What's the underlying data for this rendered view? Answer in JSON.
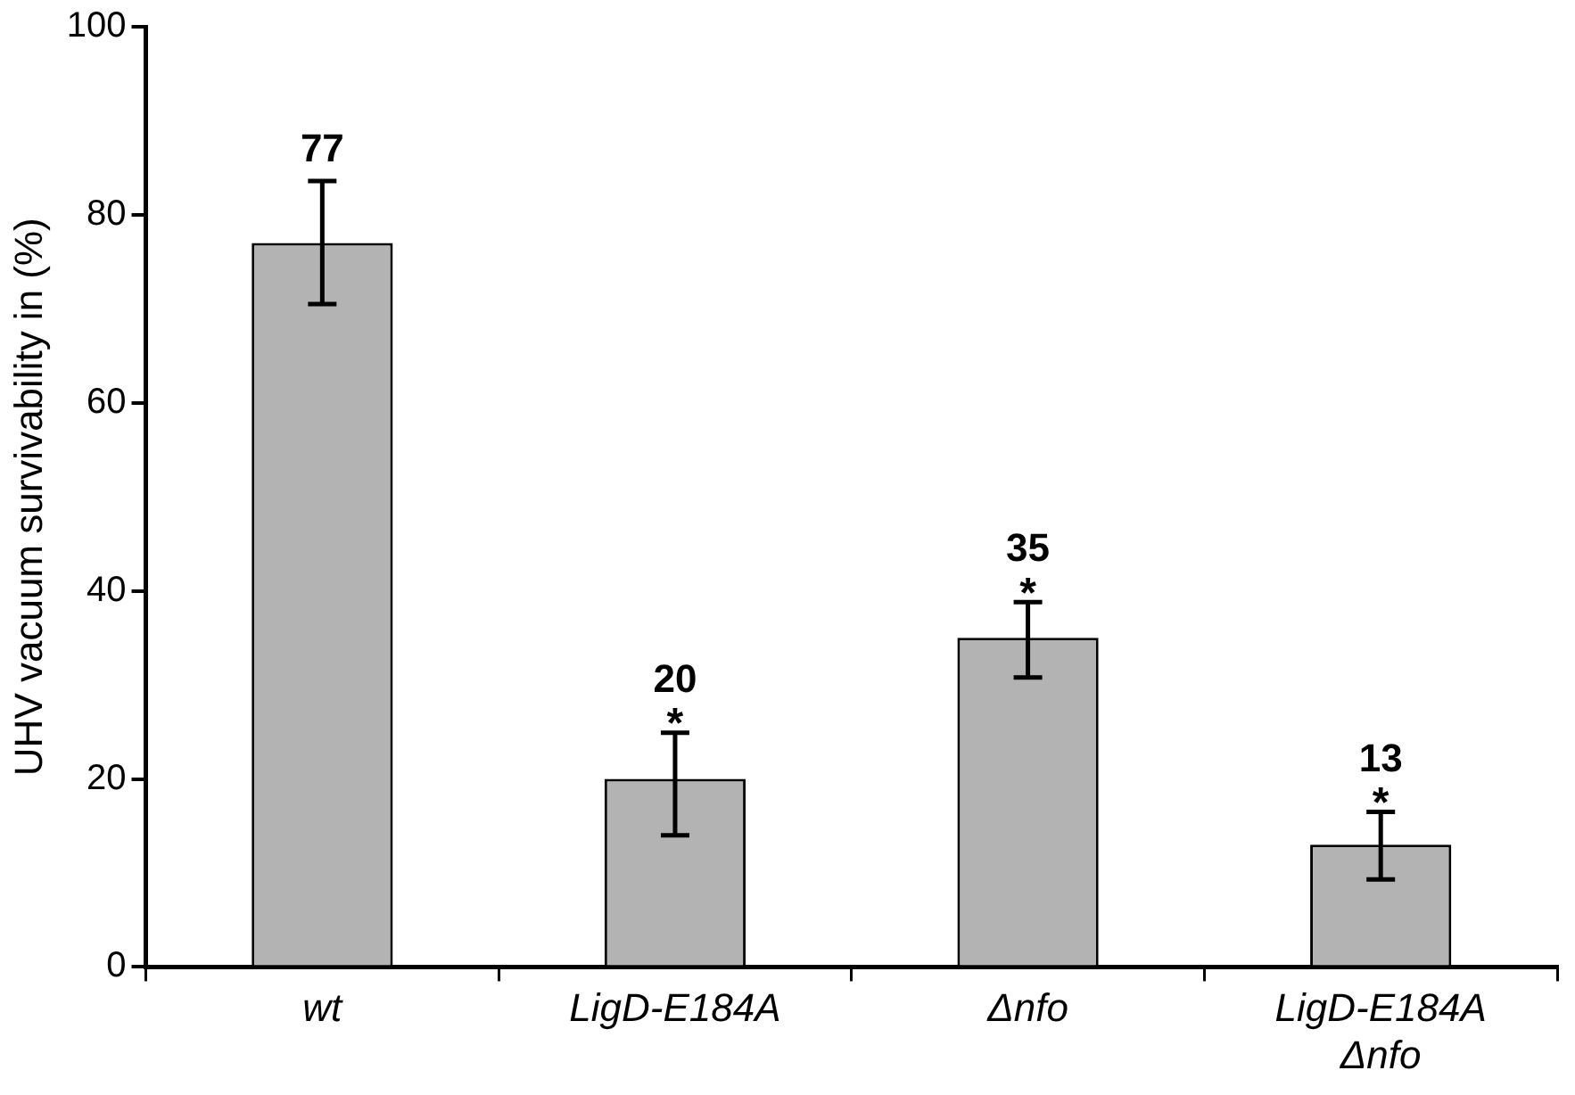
{
  "chart_data": {
    "type": "bar",
    "ylabel": "UHV vacuum survivability in (%)",
    "categories": [
      "wt",
      "LigD-E184A",
      "Δnfo",
      "LigD-E184A Δnfo"
    ],
    "values": [
      77,
      20,
      35,
      13
    ],
    "errors": [
      [
        70.5,
        83.6
      ],
      [
        14.0,
        24.9
      ],
      [
        30.8,
        38.8
      ],
      [
        9.3,
        16.5
      ]
    ],
    "color": "#b3b3b3",
    "ylim": [
      0,
      100
    ],
    "yticks": [
      0,
      20,
      40,
      60,
      80,
      100
    ],
    "grid": false,
    "legend": false,
    "data_labels": true,
    "annotations": [
      {
        "text": "*",
        "x": "LigD-E184A",
        "y": 24.9
      },
      {
        "text": "*",
        "x": "Δnfo",
        "y": 38.8
      },
      {
        "text": "*",
        "x": "LigD-E184A Δnfo",
        "y": 16.5
      }
    ]
  }
}
